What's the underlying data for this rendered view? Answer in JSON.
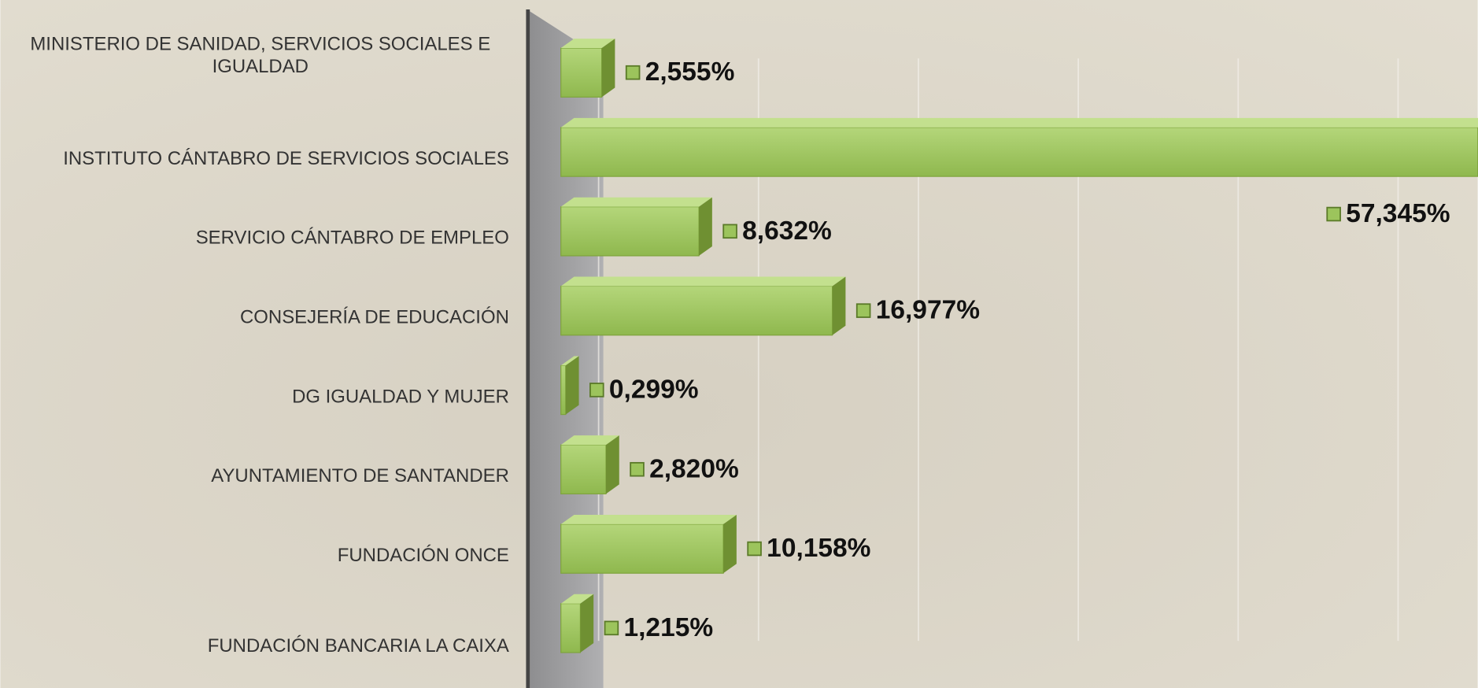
{
  "chart_data": {
    "type": "bar",
    "orientation": "horizontal",
    "categories": [
      "MINISTERIO  DE SANIDAD, SERVICIOS  SOCIALES E IGUALDAD",
      "INSTITUTO  CÁNTABRO DE SERVICIOS  SOCIALES",
      "SERVICIO CÁNTABRO  DE EMPLEO",
      "CONSEJERÍA  DE EDUCACIÓN",
      "DG IGUALDAD  Y MUJER",
      "AYUNTAMIENTO  DE SANTANDER",
      "FUNDACIÓN  ONCE",
      "FUNDACIÓN  BANCARIA LA CAIXA"
    ],
    "values": [
      2.555,
      57.345,
      8.632,
      16.977,
      0.299,
      2.82,
      10.158,
      1.215
    ],
    "value_labels": [
      "2,555%",
      "57,345%",
      "8,632%",
      "16,977%",
      "0,299%",
      "2,820%",
      "10,158%",
      "1,215%"
    ],
    "color": "#9cc45c",
    "xlim": [
      0,
      60
    ],
    "xticks": [
      0,
      10,
      20,
      30,
      40,
      50,
      60
    ],
    "grid": true
  }
}
